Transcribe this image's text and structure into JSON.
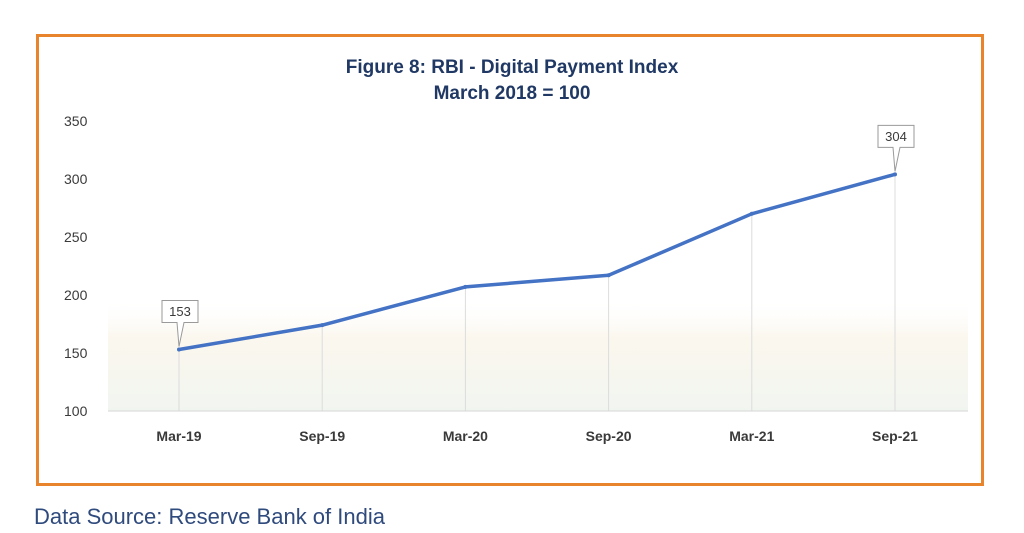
{
  "chart_data": {
    "type": "line",
    "title": "Figure 8: RBI - Digital Payment Index",
    "subtitle": "March 2018 = 100",
    "xlabel": "",
    "ylabel": "",
    "categories": [
      "Mar-19",
      "Sep-19",
      "Mar-20",
      "Sep-20",
      "Mar-21",
      "Sep-21"
    ],
    "series": [
      {
        "values": [
          153,
          174,
          207,
          217,
          270,
          304
        ],
        "color": "#4472c4"
      }
    ],
    "ylim": [
      100,
      350
    ],
    "yticks": [
      100,
      150,
      200,
      250,
      300,
      350
    ],
    "y_tick_labels": [
      "100",
      "150",
      "200",
      "250",
      "300",
      "350"
    ],
    "data_labels": [
      {
        "category": "Mar-19",
        "text": "153"
      },
      {
        "category": "Sep-21",
        "text": "304"
      }
    ],
    "grid": "vertical drop lines at categories",
    "legend": "none",
    "frame_color": "#e8852c",
    "title_color": "#203864"
  },
  "footer": {
    "source": "Data Source: Reserve Bank of India"
  }
}
